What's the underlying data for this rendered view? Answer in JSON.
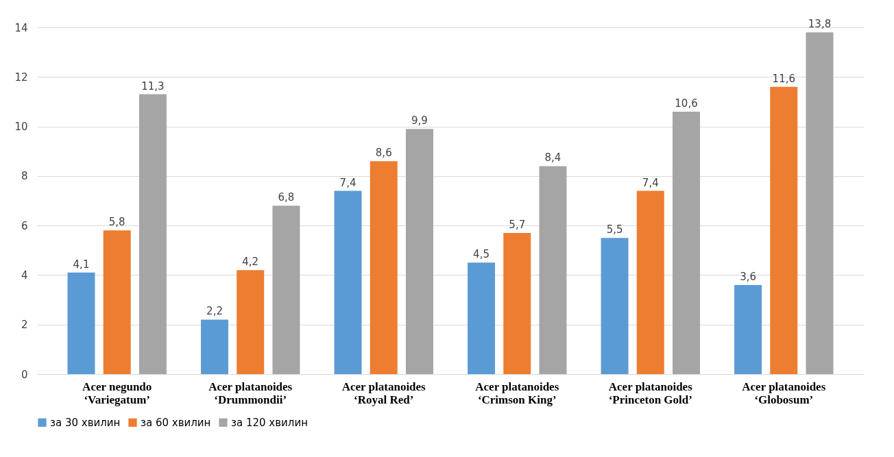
{
  "chart_data": {
    "type": "bar",
    "categories": [
      "Acer negundo\n‘Variegatum’",
      "Acer platanoides\n‘Drummondii’",
      "Acer platanoides\n‘Royal Red’",
      "Acer platanoides\n‘Crimson  King’",
      "Acer platanoides\n‘Princeton Gold’",
      "Acer platanoides\n‘Globosum’"
    ],
    "series": [
      {
        "name": "за 30 хвилин",
        "color": "#5b9bd5",
        "values": [
          4.1,
          2.2,
          7.4,
          4.5,
          5.5,
          3.6
        ],
        "value_labels": [
          "4,1",
          "2,2",
          "7,4",
          "4,5",
          "5,5",
          "3,6"
        ]
      },
      {
        "name": "за 60 хвилин",
        "color": "#ed7d31",
        "values": [
          5.8,
          4.2,
          8.6,
          5.7,
          7.4,
          11.6
        ],
        "value_labels": [
          "5,8",
          "4,2",
          "8,6",
          "5,7",
          "7,4",
          "11,6"
        ]
      },
      {
        "name": "за 120 хвилин",
        "color": "#a5a5a5",
        "values": [
          11.3,
          6.8,
          9.9,
          8.4,
          10.6,
          13.8
        ],
        "value_labels": [
          "11,3",
          "6,8",
          "9,9",
          "8,4",
          "10,6",
          "13,8"
        ]
      }
    ],
    "ylim": [
      0,
      14
    ],
    "yticks": [
      0,
      2,
      4,
      6,
      8,
      10,
      12,
      14
    ],
    "grid": "y",
    "legend": "bottom"
  }
}
